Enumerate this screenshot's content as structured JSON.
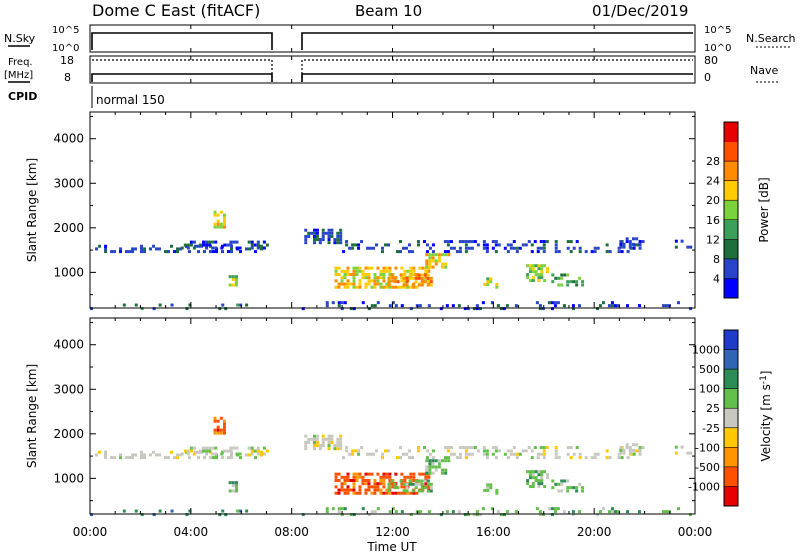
{
  "header": {
    "station": "Dome C East (fitACF)",
    "beam": "Beam 10",
    "date": "01/Dec/2019"
  },
  "panel_labels": {
    "nsky": "N.Sky",
    "nsky_hi": "10^5",
    "nsky_lo": "10^0",
    "nsearch": "N.Search",
    "nsearch_hi": "10^5",
    "nsearch_lo": "10^0",
    "freq_a": "Freq.",
    "freq_b": "[MHz]",
    "freq_hi": "18",
    "freq_lo": "8",
    "nave": "Nave",
    "nave_hi": "80",
    "nave_lo": "0",
    "cpid": "CPID",
    "cpid_value": "normal 150"
  },
  "chart_data": [
    {
      "type": "heatmap",
      "xlabel": "",
      "ylabel": "Slant Range [km]",
      "x_ticks": [
        "00:00",
        "04:00",
        "08:00",
        "12:00",
        "16:00",
        "20:00",
        "00:00"
      ],
      "xlim_hours": [
        0,
        24
      ],
      "y_ticks": [
        1000,
        2000,
        3000,
        4000
      ],
      "ylim": [
        200,
        4600
      ],
      "colorbar": {
        "label": "Power [dB]",
        "ticks": [
          "4",
          "8",
          "12",
          "16",
          "20",
          "24",
          "28"
        ],
        "colors": [
          "#0000ff",
          "#2844c8",
          "#1e6e3c",
          "#3ca05a",
          "#7cd23c",
          "#ffcc00",
          "#ff8c00",
          "#ff5000",
          "#e60000"
        ]
      },
      "data_gap_hours": [
        7.2,
        8.4
      ]
    },
    {
      "type": "heatmap",
      "xlabel": "Time UT",
      "ylabel": "Slant Range [km]",
      "x_ticks": [
        "00:00",
        "04:00",
        "08:00",
        "12:00",
        "16:00",
        "20:00",
        "00:00"
      ],
      "xlim_hours": [
        0,
        24
      ],
      "y_ticks": [
        1000,
        2000,
        3000,
        4000
      ],
      "ylim": [
        200,
        4600
      ],
      "colorbar": {
        "label": "Velocity [m s^-1]",
        "ticks": [
          "1000",
          "500",
          "100",
          "25",
          "-25",
          "-100",
          "-500",
          "-1000"
        ],
        "colors": [
          "#1e3cc8",
          "#3264b4",
          "#2d8c55",
          "#64be4b",
          "#c8c8c0",
          "#ffc800",
          "#ff9600",
          "#ff5000",
          "#e60000"
        ]
      },
      "data_gap_hours": [
        7.2,
        8.4
      ]
    }
  ]
}
